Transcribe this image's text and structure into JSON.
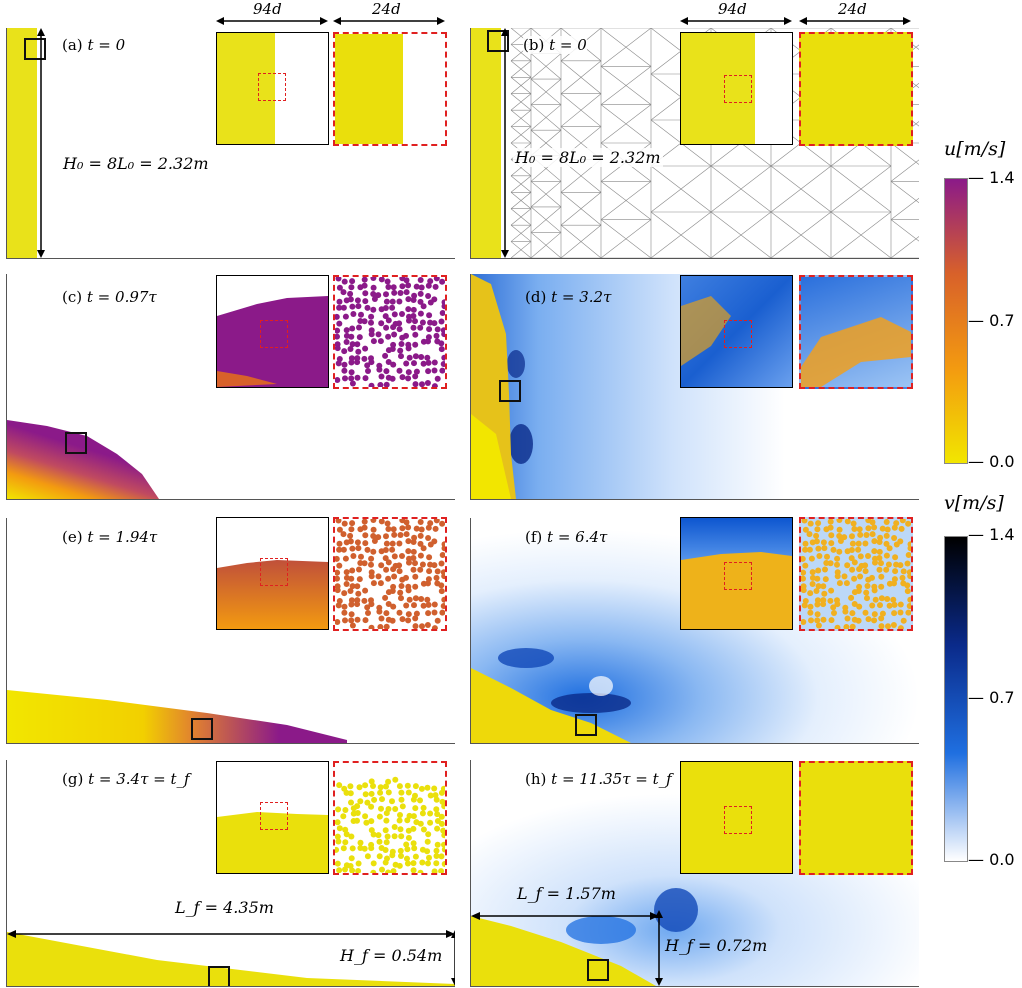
{
  "figure": {
    "scale_labels": {
      "large": "94d",
      "small": "24d"
    },
    "panels": [
      {
        "id": "a",
        "label": "(a)",
        "time": "t = 0"
      },
      {
        "id": "b",
        "label": "(b)",
        "time": "t = 0"
      },
      {
        "id": "c",
        "label": "(c)",
        "time": "t = 0.97τ"
      },
      {
        "id": "d",
        "label": "(d)",
        "time": "t = 3.2τ"
      },
      {
        "id": "e",
        "label": "(e)",
        "time": "t = 1.94τ"
      },
      {
        "id": "f",
        "label": "(f)",
        "time": "t = 6.4τ"
      },
      {
        "id": "g",
        "label": "(g)",
        "time": "t = 3.4τ = t_f"
      },
      {
        "id": "h",
        "label": "(h)",
        "time": "t = 11.35τ = t_f"
      }
    ],
    "annotations": {
      "a_height": "H₀ = 8L₀ = 2.32m",
      "b_height": "H₀ = 8L₀ = 2.32m",
      "g_length": "L_f = 4.35m",
      "g_height": "H_f = 0.54m",
      "h_length": "L_f = 1.57m",
      "h_height": "H_f = 0.72m"
    },
    "colorbars": {
      "u": {
        "title": "u[m/s]",
        "ticks": [
          "1.4",
          "0.7",
          "0.0"
        ],
        "colors": [
          "#8b1a89",
          "#d8612a",
          "#f39a10",
          "#f2e600"
        ]
      },
      "v": {
        "title": "v[m/s]",
        "ticks": [
          "1.4",
          "0.7",
          "0.0"
        ],
        "colors": [
          "#000000",
          "#0a2a8a",
          "#1f6fe0",
          "#ffffff"
        ]
      }
    }
  }
}
